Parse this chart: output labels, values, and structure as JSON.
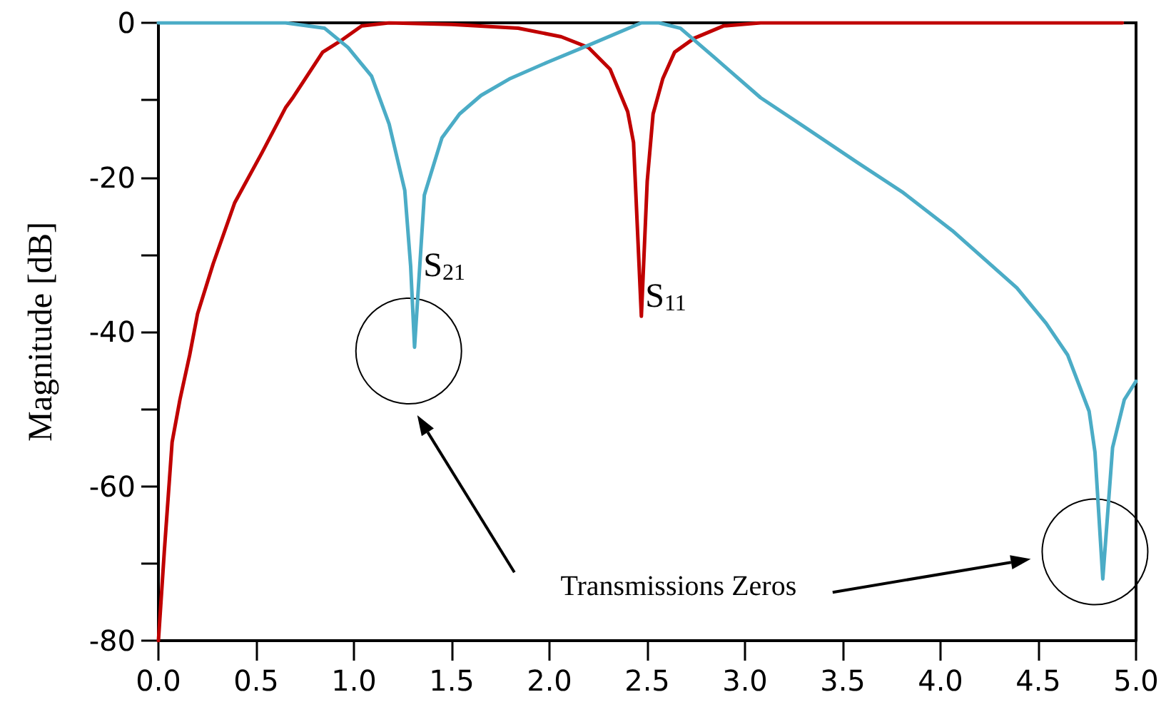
{
  "chart_data": {
    "type": "line",
    "ylabel": "Magnitude [dB]",
    "xlim": [
      0,
      5
    ],
    "ylim": [
      -80,
      0
    ],
    "xticks": [
      {
        "value": 0,
        "label": "0.0"
      },
      0.5,
      {
        "value": 1,
        "label": "1.0"
      },
      1.5,
      {
        "value": 2,
        "label": "2.0"
      },
      2.5,
      {
        "value": 3,
        "label": "3.0"
      },
      3.5,
      {
        "value": 4,
        "label": "4.0"
      },
      4.5,
      {
        "value": 5,
        "label": "5.0"
      }
    ],
    "yticks": [
      -80,
      {
        "value": -70,
        "label": null
      },
      -60,
      {
        "value": -50,
        "label": null
      },
      -40,
      {
        "value": -30,
        "label": null
      },
      -20,
      {
        "value": -10,
        "label": null
      },
      0
    ],
    "grid": false,
    "legend": false,
    "marker": "none",
    "line_style": "solid",
    "annotations": [
      "Transmissions Zeros"
    ],
    "series": [
      {
        "name": "S$_{11}$",
        "color": "#c00000",
        "x": [
          0,
          0.03,
          0.07,
          0.11,
          0.16,
          0.2,
          0.28,
          0.39,
          0.53,
          0.65,
          0.69,
          0.84,
          0.94,
          1.04,
          1.18,
          1.5,
          1.84,
          2.06,
          2.2,
          2.31,
          2.4,
          2.43,
          2.47,
          2.5,
          2.53,
          2.58,
          2.64,
          2.74,
          2.89,
          3.08,
          4.93
        ],
        "values": [
          -80,
          -68.5,
          -54.3,
          -48.8,
          -43,
          -37.7,
          -31.2,
          -23.3,
          -16.8,
          -11,
          -9.6,
          -3.8,
          -2.2,
          -0.4,
          0,
          -0.2,
          -0.7,
          -1.8,
          -3.2,
          -6,
          -11.5,
          -15.5,
          -38,
          -20.5,
          -11.8,
          -7.2,
          -3.8,
          -2,
          -0.4,
          0,
          0
        ]
      },
      {
        "name": "S$_{21}$",
        "color": "#4bacc6",
        "x": [
          0,
          0.6,
          0.65,
          0.85,
          0.97,
          1.09,
          1.18,
          1.26,
          1.29,
          1.31,
          1.36,
          1.45,
          1.54,
          1.65,
          1.8,
          1.99,
          2.2,
          2.47,
          2.56,
          2.67,
          2.84,
          3.08,
          3.3,
          3.57,
          3.81,
          4.06,
          4.39,
          4.54,
          4.65,
          4.76,
          4.79,
          4.83,
          4.88,
          4.94,
          5.0
        ],
        "values": [
          0,
          0,
          0,
          -0.7,
          -3.2,
          -6.9,
          -13.1,
          -21.7,
          -31.5,
          -42,
          -22.3,
          -14.9,
          -11.8,
          -9.4,
          -7.2,
          -5.1,
          -2.9,
          0,
          0,
          -0.7,
          -4.4,
          -9.7,
          -13.4,
          -18,
          -22,
          -26.9,
          -34.3,
          -38.9,
          -43,
          -50.3,
          -55.6,
          -72,
          -55,
          -48.8,
          -46.4
        ]
      }
    ]
  }
}
